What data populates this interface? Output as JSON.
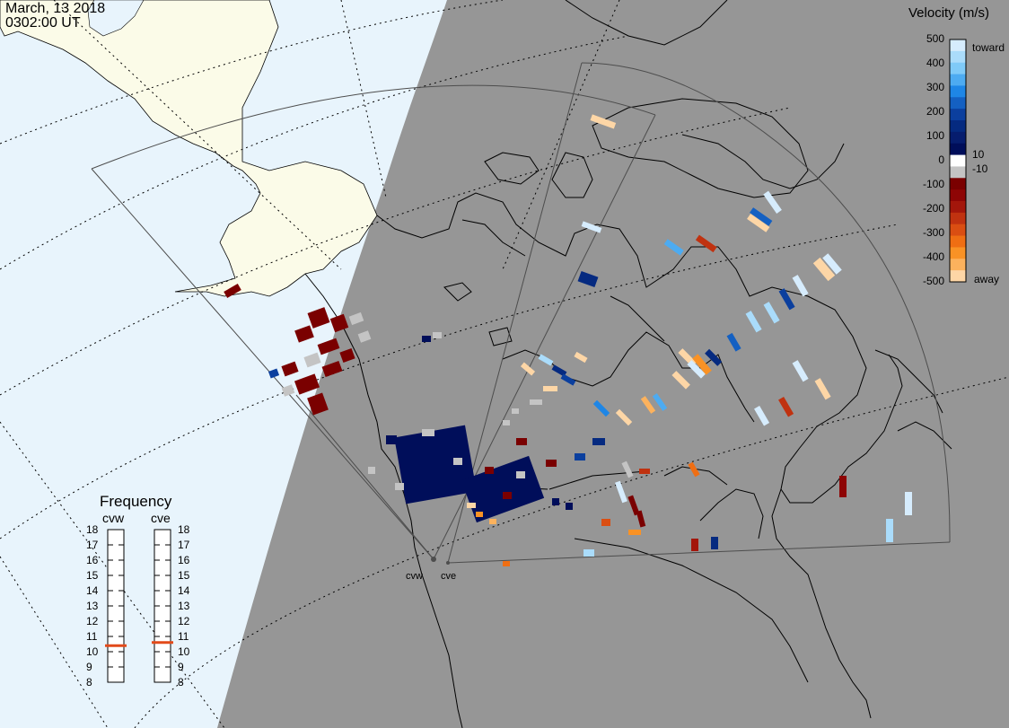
{
  "timestamp": {
    "date": "March, 13 2018",
    "time": "0302:00 UT"
  },
  "velocity_scale": {
    "title": "Velocity (m/s)",
    "ticks": [
      "500",
      "400",
      "300",
      "200",
      "100",
      "0",
      "-100",
      "-200",
      "-300",
      "-400",
      "-500"
    ],
    "labels": {
      "toward": "toward",
      "away": "away",
      "plus": "10",
      "minus": "-10"
    },
    "colors": [
      "#d6ecfd",
      "#aadcfb",
      "#7fcaf8",
      "#4dabf1",
      "#1e86e6",
      "#1460c2",
      "#0b3f9e",
      "#052a80",
      "#061d6e",
      "#000e5a",
      "#ffffff",
      "#c4c4c4",
      "#7a0000",
      "#8e0505",
      "#a3160b",
      "#c03210",
      "#da4e12",
      "#ef6e13",
      "#f99225",
      "#fcb25d",
      "#fdd6a6"
    ]
  },
  "frequency_panel": {
    "title": "Frequency",
    "radars": [
      "cvw",
      "cve"
    ],
    "ticks": [
      "18",
      "17",
      "16",
      "15",
      "14",
      "13",
      "12",
      "11",
      "10",
      "9",
      "8"
    ],
    "current": {
      "cvw": 10.4,
      "cve": 10.6
    },
    "marker_color": "#e24a1a"
  },
  "map": {
    "ocean_color": "#e8f4fc",
    "night_color": "#969696",
    "land_day_color": "#fbfbe8",
    "fov_color": "#4d4d4d",
    "sites": [
      {
        "name": "cvw"
      },
      {
        "name": "cve"
      }
    ]
  }
}
